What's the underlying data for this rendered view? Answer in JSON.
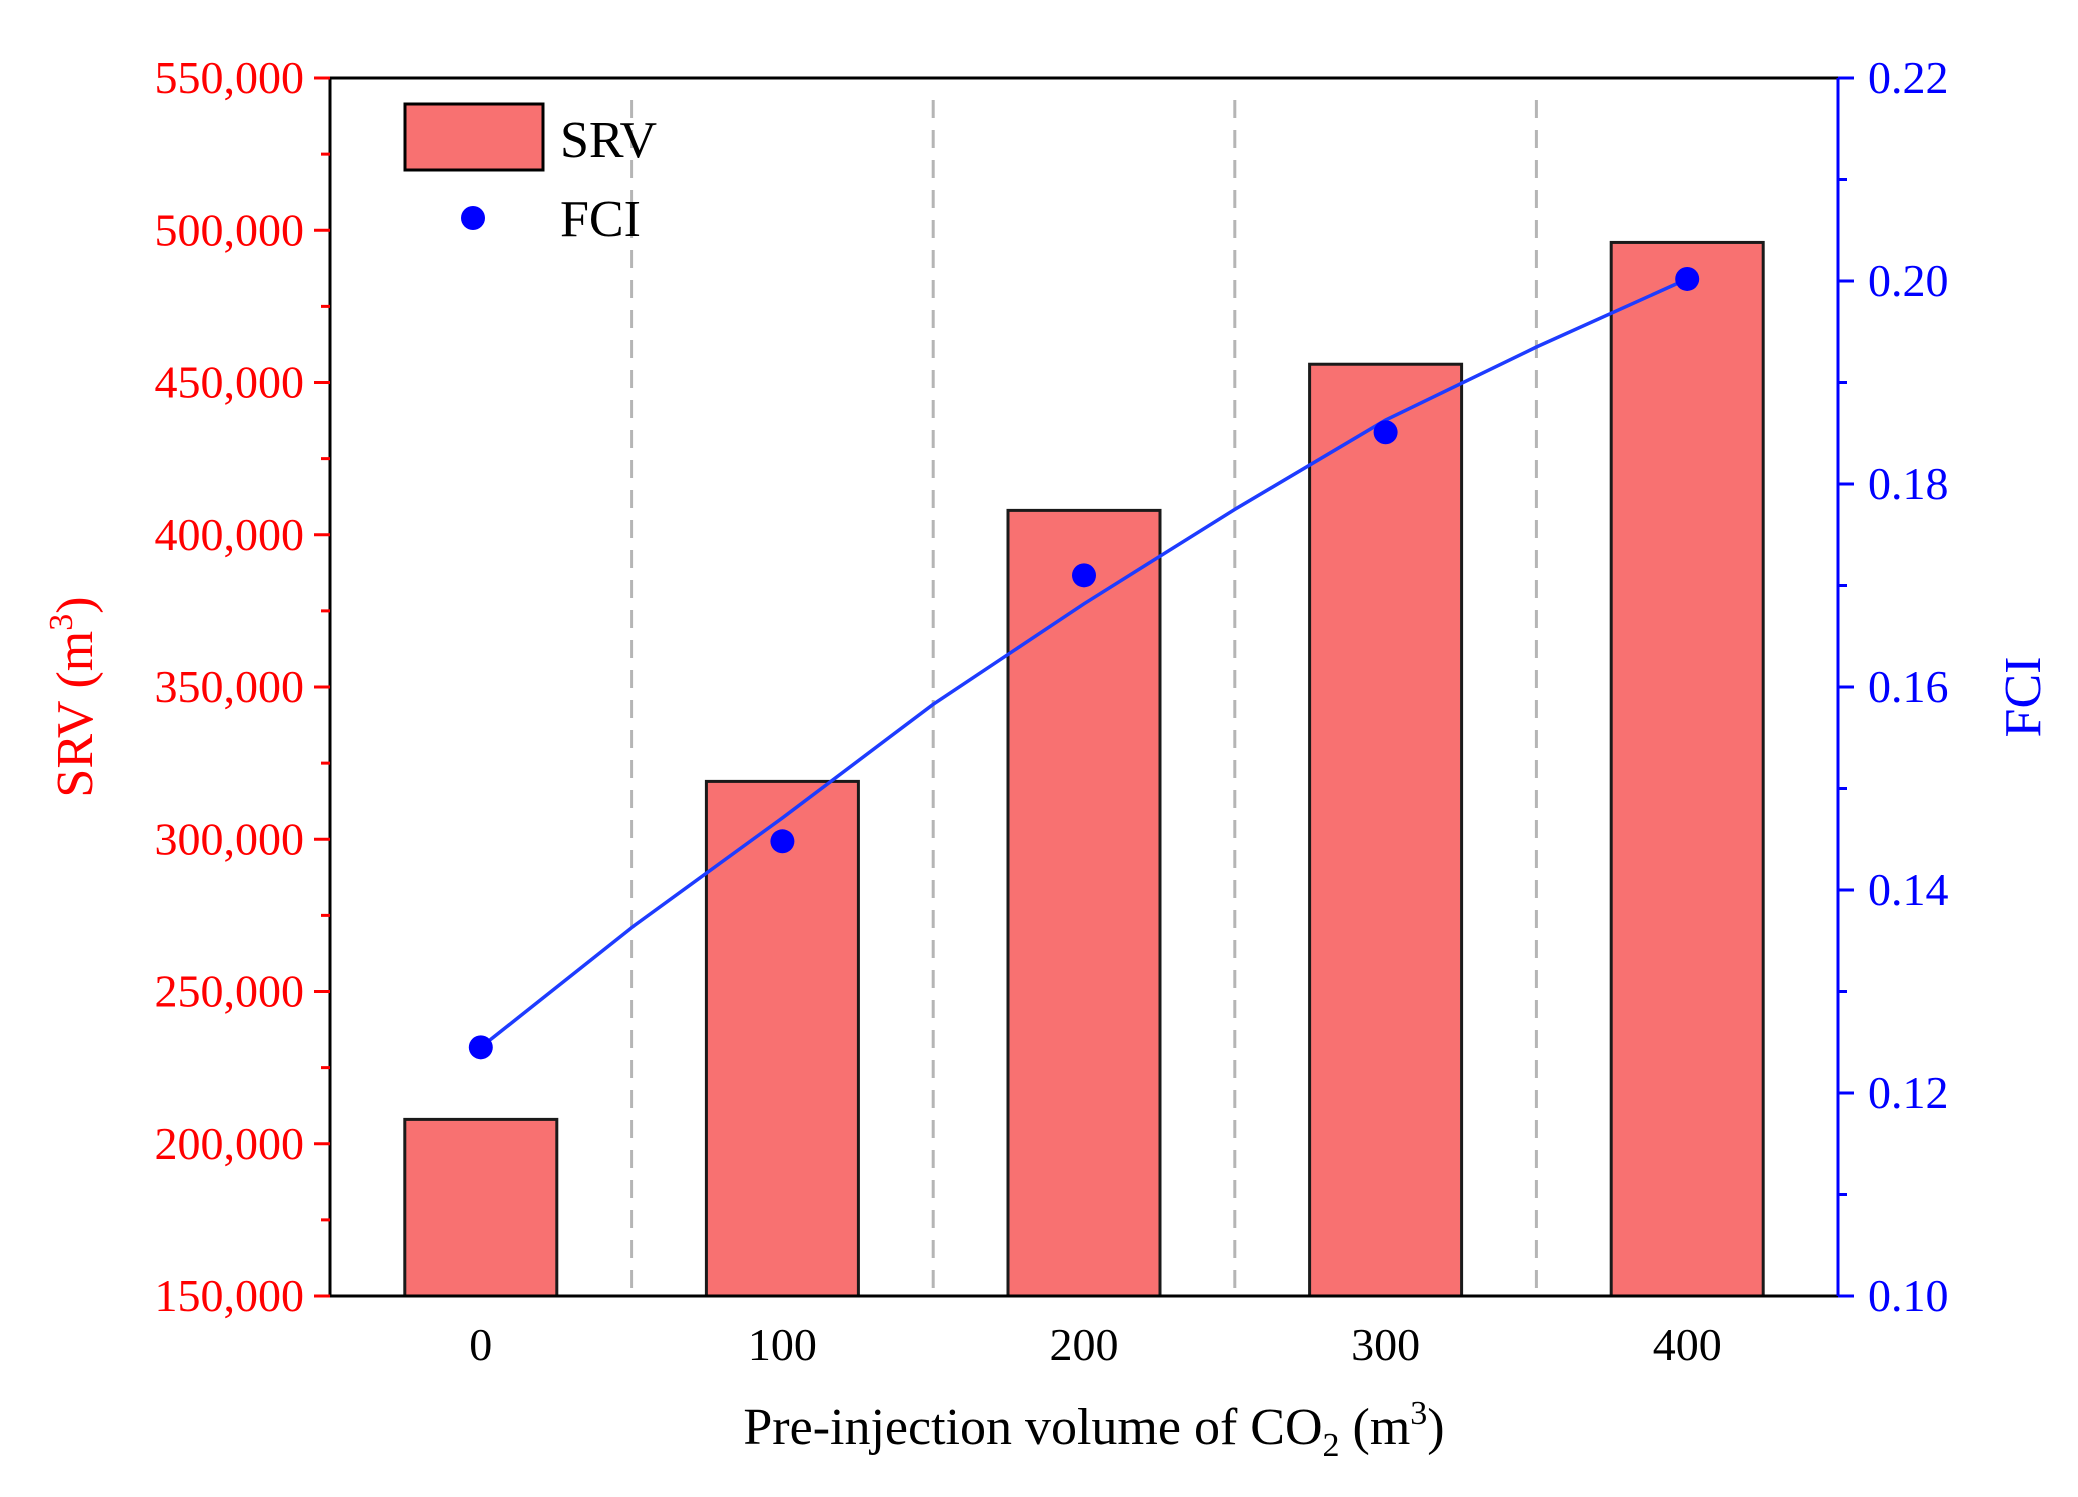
{
  "chart_data": {
    "type": "bar+scatter",
    "categories": [
      "0",
      "100",
      "200",
      "300",
      "400"
    ],
    "x": [
      0,
      100,
      200,
      300,
      400
    ],
    "series": [
      {
        "name": "SRV",
        "kind": "bar",
        "axis": "left",
        "values": [
          208000,
          319000,
          408000,
          456000,
          496000
        ],
        "color": "#f87171"
      },
      {
        "name": "FCI",
        "kind": "scatter",
        "axis": "right",
        "values": [
          0.1245,
          0.1448,
          0.171,
          0.1851,
          0.2002
        ],
        "color": "#0000ff"
      }
    ],
    "fit_line": {
      "name": "FCI trend",
      "color": "#1e3cff",
      "x": [
        0,
        50,
        100,
        150,
        200,
        250,
        300,
        350,
        400
      ],
      "y": [
        0.1245,
        0.1363,
        0.1471,
        0.1583,
        0.1682,
        0.1775,
        0.1863,
        0.1935,
        0.2002
      ]
    },
    "xlabel": {
      "main": "Pre-injection volume of CO",
      "sub": "2",
      "unit_open": " (m",
      "sup": "3",
      "unit_close": ")"
    },
    "ylabel_left": {
      "main": "SRV (m",
      "sup": "3",
      "close": ")",
      "color": "#ff0000"
    },
    "ylabel_right": {
      "main": "FCI",
      "color": "#0000ff"
    },
    "y_left": {
      "range": [
        150000,
        550000
      ],
      "ticks": [
        "150,000",
        "200,000",
        "250,000",
        "300,000",
        "350,000",
        "400,000",
        "450,000",
        "500,000",
        "550,000"
      ],
      "color": "#ff0000"
    },
    "y_right": {
      "range": [
        0.1,
        0.22
      ],
      "ticks": [
        "0.10",
        "0.12",
        "0.14",
        "0.16",
        "0.18",
        "0.20",
        "0.22"
      ],
      "color": "#0000ff"
    },
    "legend": {
      "placement": "top-left",
      "items": [
        {
          "label": "SRV",
          "symbol": "bar"
        },
        {
          "label": "FCI",
          "symbol": "dot"
        }
      ]
    },
    "separators": [
      50,
      150,
      250,
      350
    ],
    "grid": false
  }
}
